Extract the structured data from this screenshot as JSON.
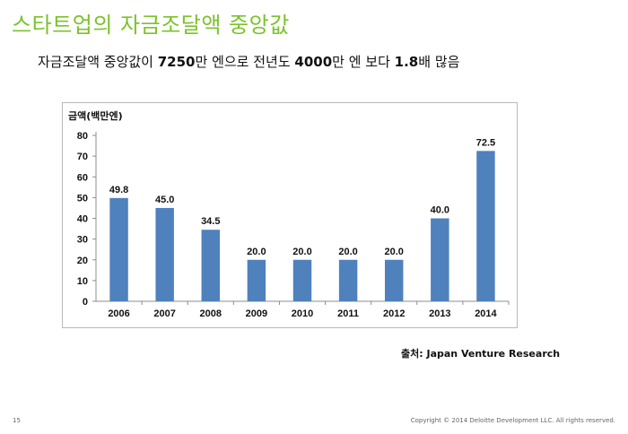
{
  "slide": {
    "title": "스타트업의 자금조달액 중앙값",
    "subtitle_prefix": "자금조달액 중앙값이 ",
    "subtitle_bold1": "7250",
    "subtitle_mid1": "만 엔으로 전년도 ",
    "subtitle_bold2": "4000",
    "subtitle_mid2": "만 엔 보다 ",
    "subtitle_bold3": "1.8",
    "subtitle_suffix": "배 많음",
    "source_label": "출처",
    "source_text": ": Japan Venture Research",
    "page_number": "15",
    "copyright": "Copyright © 2014 Deloitte Development LLC. All rights reserved."
  },
  "colors": {
    "title": "#7cc22c",
    "bar": "#4f81bd"
  },
  "chart_data": {
    "type": "bar",
    "ylabel": "금액(백만엔)",
    "categories": [
      "2006",
      "2007",
      "2008",
      "2009",
      "2010",
      "2011",
      "2012",
      "2013",
      "2014"
    ],
    "values": [
      49.8,
      45.0,
      34.5,
      20.0,
      20.0,
      20.0,
      20.0,
      40.0,
      72.5
    ],
    "value_labels": [
      "49.8",
      "45.0",
      "34.5",
      "20.0",
      "20.0",
      "20.0",
      "20.0",
      "40.0",
      "72.5"
    ],
    "yticks": [
      "0",
      "10",
      "20",
      "30",
      "40",
      "50",
      "60",
      "70",
      "80"
    ],
    "ylim": [
      0,
      80
    ],
    "grid": false,
    "legend": "none"
  }
}
